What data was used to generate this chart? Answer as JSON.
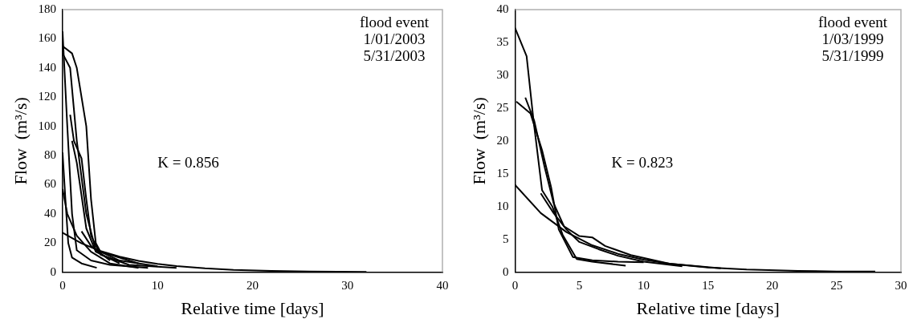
{
  "chart_data": [
    {
      "type": "line",
      "xlabel": "Relative time [days]",
      "ylabel": "Flow  (m³/s)",
      "xlim": [
        0,
        40
      ],
      "xticks": [
        0,
        10,
        20,
        30,
        40
      ],
      "ylim": [
        0,
        180
      ],
      "yticks": [
        0,
        20,
        40,
        60,
        80,
        100,
        120,
        140,
        160,
        180
      ],
      "grid": false,
      "legend": false,
      "marker": "none",
      "annotations": [
        "flood event\n1/01/2003\n5/31/2003",
        "K = 0.856"
      ],
      "series": [
        {
          "color": "#000000",
          "x": [
            0,
            0.5,
            1,
            1.5,
            3,
            5,
            9
          ],
          "values": [
            165,
            100,
            40,
            15,
            8,
            5,
            3
          ]
        },
        {
          "color": "#000000",
          "x": [
            0,
            1,
            1.5,
            2.5,
            3,
            3.5,
            4,
            6,
            10
          ],
          "values": [
            155,
            150,
            140,
            100,
            50,
            20,
            14,
            8,
            4
          ]
        },
        {
          "color": "#000000",
          "x": [
            0,
            0.8,
            1.5,
            2.5,
            3.5,
            8
          ],
          "values": [
            150,
            140,
            90,
            40,
            15,
            6
          ]
        },
        {
          "color": "#000000",
          "x": [
            0.8,
            1.2,
            2,
            2.5,
            3,
            4,
            7,
            12
          ],
          "values": [
            108,
            90,
            78,
            50,
            25,
            12,
            5,
            3
          ]
        },
        {
          "color": "#000000",
          "x": [
            1,
            1.5,
            2.5,
            3.5,
            6
          ],
          "values": [
            90,
            75,
            30,
            14,
            6
          ]
        },
        {
          "color": "#000000",
          "x": [
            0,
            0.3,
            0.6,
            1,
            2,
            3.6
          ],
          "values": [
            82,
            50,
            20,
            10,
            6,
            3
          ]
        },
        {
          "color": "#000000",
          "x": [
            0,
            0.5,
            1.5,
            3,
            5,
            8
          ],
          "values": [
            57,
            40,
            25,
            14,
            6,
            3
          ]
        },
        {
          "color": "#000000",
          "x": [
            2,
            3,
            5
          ],
          "values": [
            28,
            18,
            8
          ]
        },
        {
          "color": "#000000",
          "x": [
            0,
            2,
            4,
            6,
            8,
            10,
            12,
            15,
            18,
            22,
            26,
            32
          ],
          "values": [
            27,
            19.8,
            14.5,
            10.6,
            7.8,
            5.7,
            4.2,
            2.6,
            1.6,
            0.9,
            0.5,
            0.2
          ]
        }
      ]
    },
    {
      "type": "line",
      "xlabel": "Relative time [days]",
      "ylabel": "Flow  (m³/s)",
      "xlim": [
        0,
        30
      ],
      "xticks": [
        0,
        5,
        10,
        15,
        20,
        25,
        30
      ],
      "ylim": [
        0,
        40
      ],
      "yticks": [
        0,
        5,
        10,
        15,
        20,
        25,
        30,
        35,
        40
      ],
      "grid": false,
      "legend": false,
      "marker": "none",
      "annotations": [
        "flood event\n1/03/1999\n5/31/1999",
        "K = 0.823"
      ],
      "series": [
        {
          "color": "#000000",
          "x": [
            0,
            0.9,
            1.45,
            2.1,
            2.9,
            3.7,
            4.8,
            6,
            8.6
          ],
          "values": [
            37.2,
            32.9,
            22.9,
            12.5,
            10,
            5.7,
            2,
            1.6,
            1
          ]
        },
        {
          "color": "#000000",
          "x": [
            0.1,
            1.2,
            2.1,
            2.8,
            3.4,
            4.5,
            6,
            8,
            10
          ],
          "values": [
            26,
            24.2,
            18.6,
            13,
            6.5,
            2.3,
            1.8,
            1.6,
            1.5
          ]
        },
        {
          "color": "#000000",
          "x": [
            0.8,
            1.5,
            2.3,
            3,
            3.8,
            5,
            6,
            7,
            9,
            12,
            16
          ],
          "values": [
            26.6,
            23,
            16,
            10.5,
            7,
            5.5,
            5.3,
            4,
            2.6,
            1.3,
            0.6
          ]
        },
        {
          "color": "#000000",
          "x": [
            2,
            3,
            4,
            5,
            6.5,
            8,
            10,
            13
          ],
          "values": [
            12,
            9,
            6.5,
            4.6,
            3.5,
            2.5,
            1.6,
            0.9
          ]
        },
        {
          "color": "#000000",
          "x": [
            0,
            2,
            4,
            6,
            8,
            10,
            12,
            15,
            18,
            22,
            25,
            28
          ],
          "values": [
            13.3,
            9,
            6.1,
            4.1,
            2.8,
            1.9,
            1.3,
            0.7,
            0.4,
            0.2,
            0.1,
            0.1
          ]
        }
      ]
    }
  ]
}
